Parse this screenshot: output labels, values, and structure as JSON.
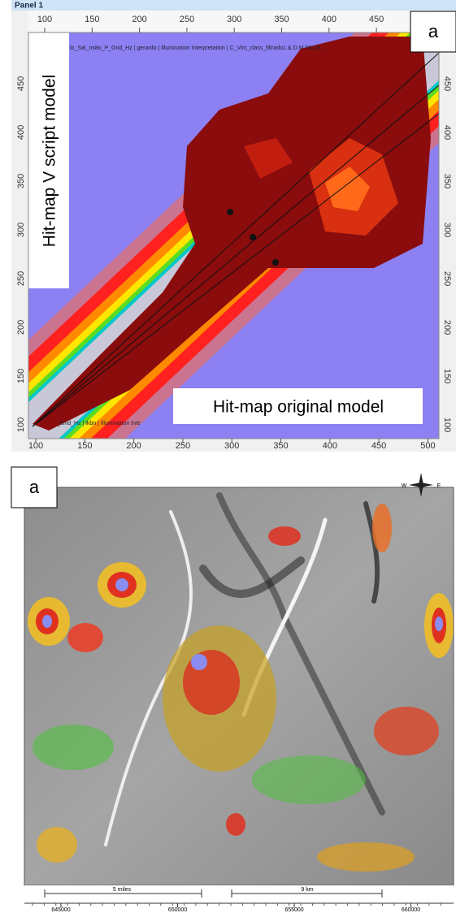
{
  "panel_top": {
    "title": "Panel 1",
    "label": "a",
    "header_text": "lo_Sal_ns8o_P_Grid_Hz | gerardo | Illumination Interpretation | C_Vint_class_filtrado1 & D.M.PACB...",
    "footer_text": "_Grid_Hz | lkbn | Illumination Inte",
    "top_ticks": [
      "100",
      "150",
      "200",
      "250",
      "300",
      "350",
      "400",
      "450"
    ],
    "bottom_ticks": [
      "100",
      "150",
      "200",
      "250",
      "300",
      "350",
      "400",
      "450",
      "500"
    ],
    "left_ticks": [
      "450",
      "400",
      "350",
      "300",
      "250",
      "200",
      "150",
      "100"
    ],
    "right_ticks": [
      "450",
      "400",
      "350",
      "300",
      "250",
      "200",
      "150",
      "100"
    ],
    "label_vertical": "Hit-map V script model",
    "label_horizontal": "Hit-map original model"
  },
  "panel_bottom": {
    "label": "a",
    "compass": {
      "west": "W",
      "east": "E"
    },
    "scale": {
      "miles": "5 miles",
      "km": "9 km"
    },
    "x_ticks": [
      "645000",
      "650000",
      "655000",
      "660000"
    ]
  }
}
